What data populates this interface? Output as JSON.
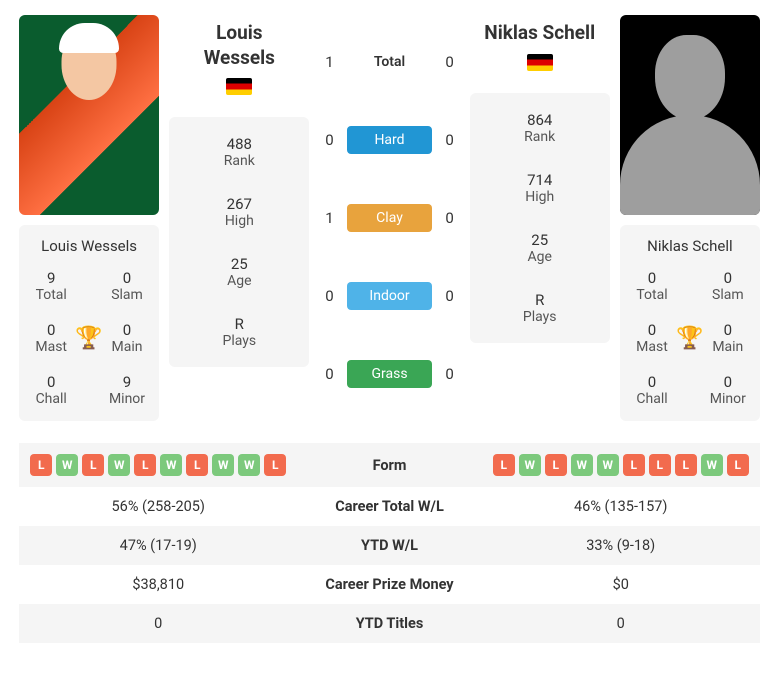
{
  "colors": {
    "win_badge": "#7cc97c",
    "loss_badge": "#f26b4e",
    "hard": "#2196d4",
    "clay": "#e8a33d",
    "indoor": "#4fb3e8",
    "grass": "#3aa655",
    "trophy": "#5b8fc7"
  },
  "p1": {
    "name": "Louis Wessels",
    "name_multiline": "Louis\nWessels",
    "flag": "germany",
    "rank": "488",
    "high": "267",
    "age": "25",
    "plays": "R",
    "titles": {
      "total": "9",
      "slam": "0",
      "mast": "0",
      "main": "0",
      "chall": "0",
      "minor": "9"
    }
  },
  "p2": {
    "name": "Niklas Schell",
    "flag": "germany",
    "rank": "864",
    "high": "714",
    "age": "25",
    "plays": "R",
    "titles": {
      "total": "0",
      "slam": "0",
      "mast": "0",
      "main": "0",
      "chall": "0",
      "minor": "0"
    }
  },
  "labels": {
    "rank": "Rank",
    "high": "High",
    "age": "Age",
    "plays": "Plays",
    "total": "Total",
    "slam": "Slam",
    "mast": "Mast",
    "main": "Main",
    "chall": "Chall",
    "minor": "Minor"
  },
  "h2h": {
    "total": {
      "label": "Total",
      "p1": "1",
      "p2": "0"
    },
    "hard": {
      "label": "Hard",
      "p1": "0",
      "p2": "0"
    },
    "clay": {
      "label": "Clay",
      "p1": "1",
      "p2": "0"
    },
    "indoor": {
      "label": "Indoor",
      "p1": "0",
      "p2": "0"
    },
    "grass": {
      "label": "Grass",
      "p1": "0",
      "p2": "0"
    }
  },
  "compare": {
    "form_label": "Form",
    "p1_form": [
      "L",
      "W",
      "L",
      "W",
      "L",
      "W",
      "L",
      "W",
      "W",
      "L"
    ],
    "p2_form": [
      "L",
      "W",
      "L",
      "W",
      "W",
      "L",
      "L",
      "L",
      "W",
      "L"
    ],
    "rows": [
      {
        "label": "Career Total W/L",
        "p1": "56% (258-205)",
        "p2": "46% (135-157)"
      },
      {
        "label": "YTD W/L",
        "p1": "47% (17-19)",
        "p2": "33% (9-18)"
      },
      {
        "label": "Career Prize Money",
        "p1": "$38,810",
        "p2": "$0"
      },
      {
        "label": "YTD Titles",
        "p1": "0",
        "p2": "0"
      }
    ]
  }
}
